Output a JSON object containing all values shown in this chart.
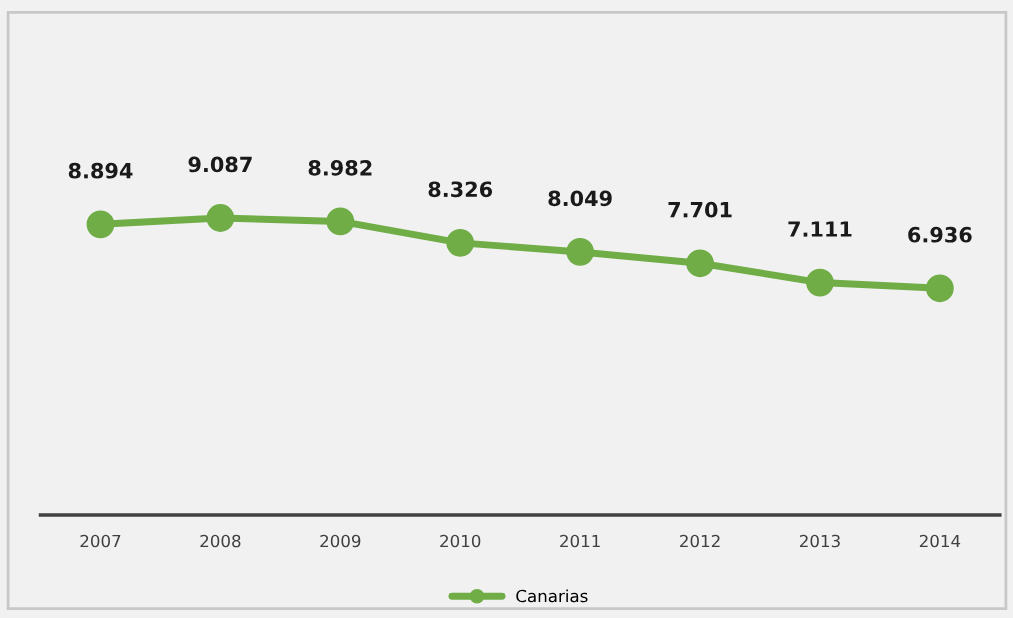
{
  "chart_data": {
    "type": "line",
    "categories": [
      "2007",
      "2008",
      "2009",
      "2010",
      "2011",
      "2012",
      "2013",
      "2014"
    ],
    "series": [
      {
        "name": "Canarias",
        "color": "#70ad47",
        "values": [
          8.894,
          9.087,
          8.982,
          8.326,
          8.049,
          7.701,
          7.111,
          6.936
        ]
      }
    ],
    "tick_labels": "x",
    "data_labels": true,
    "marker": "circle",
    "line_style": "solid",
    "legend": "bottom",
    "grid": false
  }
}
